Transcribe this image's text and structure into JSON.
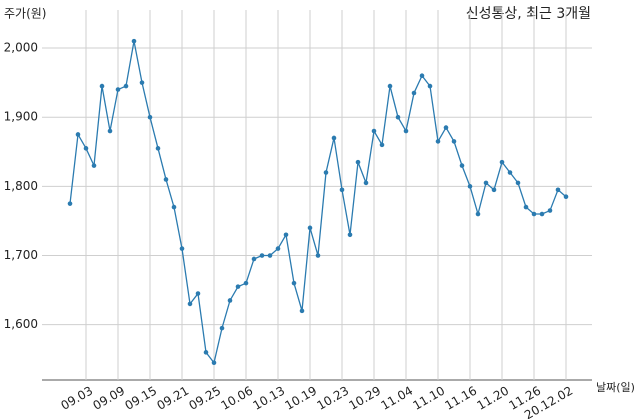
{
  "chart_data": {
    "type": "line",
    "title": "신성통상, 최근 3개월",
    "y_label": "주가(원)",
    "x_label": "날짜(일)",
    "categories": [
      null,
      null,
      "09.03",
      null,
      null,
      null,
      "09.09",
      null,
      null,
      null,
      "09.15",
      null,
      null,
      null,
      "09.21",
      null,
      null,
      null,
      "09.25",
      null,
      null,
      null,
      "10.06",
      null,
      null,
      null,
      "10.13",
      null,
      null,
      null,
      "10.19",
      null,
      null,
      null,
      "10.23",
      null,
      null,
      null,
      "10.29",
      null,
      null,
      null,
      "11.04",
      null,
      null,
      null,
      "11.10",
      null,
      null,
      null,
      "11.16",
      null,
      null,
      null,
      "11.20",
      null,
      null,
      null,
      "11.26",
      null,
      null,
      null,
      "20.12.02"
    ],
    "series": [
      {
        "name": "주가",
        "color": "#2b7bb0",
        "values": [
          1775,
          1875,
          1855,
          1830,
          1945,
          1880,
          1940,
          1945,
          2010,
          1950,
          1900,
          1855,
          1810,
          1770,
          1710,
          1630,
          1645,
          1560,
          1545,
          1595,
          1635,
          1655,
          1660,
          1695,
          1700,
          1700,
          1710,
          1730,
          1660,
          1620,
          1740,
          1700,
          1820,
          1870,
          1795,
          1730,
          1835,
          1805,
          1880,
          1860,
          1945,
          1900,
          1880,
          1935,
          1960,
          1945,
          1865,
          1885,
          1865,
          1830,
          1800,
          1760,
          1805,
          1795,
          1835,
          1820,
          1805,
          1770,
          1760,
          1760,
          1765,
          1795,
          1785
        ]
      }
    ],
    "ylim": [
      1520,
      2055
    ],
    "yticks": [
      {
        "value": 1600,
        "label": "1,600"
      },
      {
        "value": 1700,
        "label": "1,700"
      },
      {
        "value": 1800,
        "label": "1,800"
      },
      {
        "value": 1900,
        "label": "1,900"
      },
      {
        "value": 2000,
        "label": "2,000"
      }
    ],
    "grid": true
  }
}
